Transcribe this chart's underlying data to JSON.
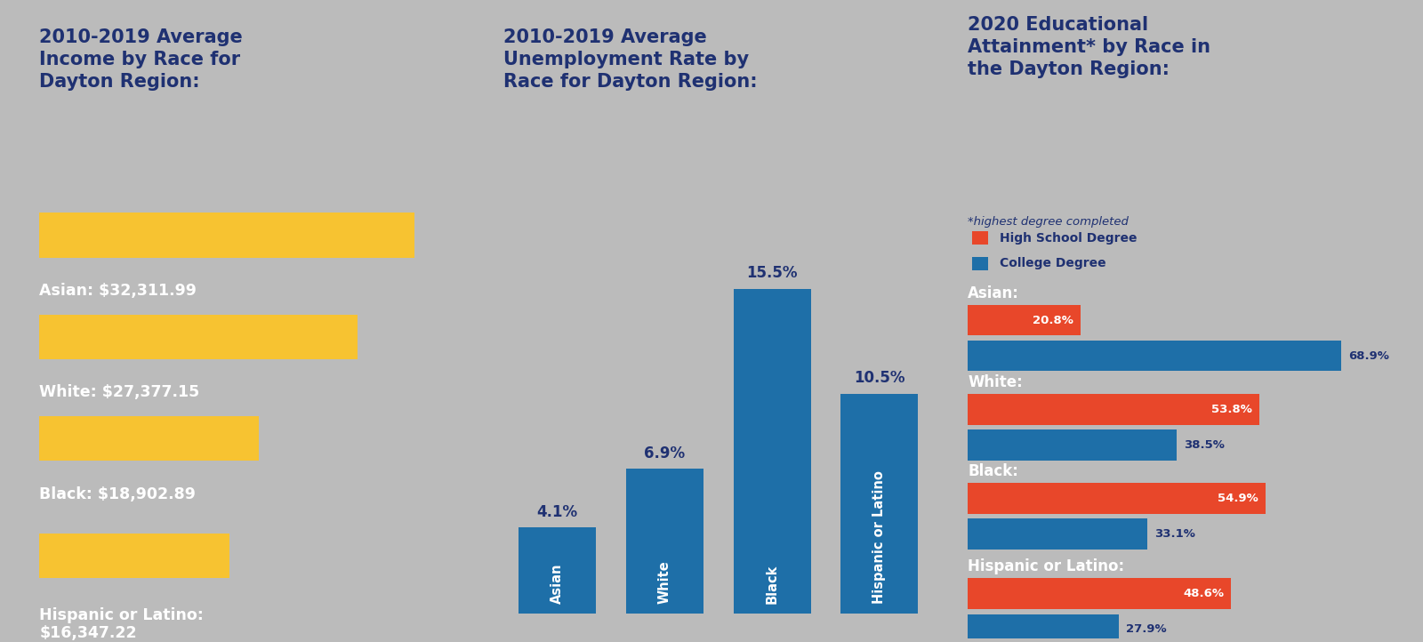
{
  "panel1": {
    "bg_color": "#F05A28",
    "title": "2010-2019 Average\nIncome by Race for\nDayton Region:",
    "title_color": "#1F3172",
    "bar_color": "#F7C331",
    "text_color": "#FFFFFF",
    "labels": [
      "Asian: $32,311.99",
      "White: $27,377.15",
      "Black: $18,902.89",
      "Hispanic or Latino:\n$16,347.22"
    ],
    "values": [
      32311.99,
      27377.15,
      18902.89,
      16347.22
    ],
    "max_val": 35000
  },
  "panel2": {
    "bg_color": "#F7C331",
    "title": "2010-2019 Average\nUnemployment Rate by\nRace for Dayton Region:",
    "title_color": "#1F3172",
    "bar_color": "#1E6FA8",
    "label_color": "#1F3172",
    "categories": [
      "Asian",
      "White",
      "Black",
      "Hispanic or Latino"
    ],
    "values": [
      4.1,
      6.9,
      15.5,
      10.5
    ],
    "labels": [
      "4.1%",
      "6.9%",
      "15.5%",
      "10.5%"
    ]
  },
  "panel3": {
    "bg_color": "#9B9E7E",
    "title": "2020 Educational\nAttainment* by Race in\nthe Dayton Region:",
    "subtitle": "*highest degree completed",
    "title_color": "#1F3172",
    "hs_color": "#E8472A",
    "col_color": "#1E6FA8",
    "legend_hs": "High School Degree",
    "legend_col": "College Degree",
    "cat_labels": [
      "Asian:",
      "White:",
      "Black:",
      "Hispanic or Latino:"
    ],
    "hs_values": [
      20.8,
      53.8,
      54.9,
      48.6
    ],
    "col_values": [
      68.9,
      38.5,
      33.1,
      27.9
    ],
    "hs_labels": [
      "20.8%",
      "53.8%",
      "54.9%",
      "48.6%"
    ],
    "col_labels": [
      "68.9%",
      "38.5%",
      "33.1%",
      "27.9%"
    ],
    "max_val": 75
  },
  "fig_bg": "#BBBBBB"
}
